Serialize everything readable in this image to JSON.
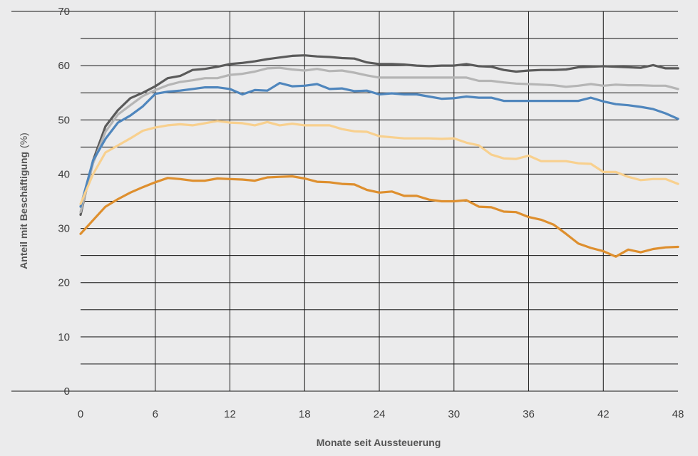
{
  "chart_data": {
    "type": "line",
    "title": "",
    "xlabel": "Monate seit Aussteuerung",
    "ylabel": "Anteil mit Beschäftigung",
    "ylabel_unit": "(%)",
    "xlim": [
      0,
      48
    ],
    "ylim": [
      0,
      70
    ],
    "x_ticks": [
      0,
      6,
      12,
      18,
      24,
      30,
      36,
      42,
      48
    ],
    "y_ticks": [
      0,
      10,
      20,
      30,
      40,
      50,
      60,
      70
    ],
    "grid": true,
    "legend": "none",
    "series": [
      {
        "color": "#5a5a5a",
        "points": [
          [
            0,
            32.5
          ],
          [
            1,
            42.5
          ],
          [
            2,
            48.8
          ],
          [
            3,
            51.8
          ],
          [
            4,
            54
          ],
          [
            5,
            55
          ],
          [
            6,
            56.2
          ],
          [
            7,
            57.7
          ],
          [
            8,
            58.1
          ],
          [
            9,
            59.2
          ],
          [
            10,
            59.4
          ],
          [
            11,
            59.8
          ],
          [
            12,
            60.3
          ],
          [
            13,
            60.5
          ],
          [
            14,
            60.8
          ],
          [
            15,
            61.2
          ],
          [
            16,
            61.5
          ],
          [
            17,
            61.8
          ],
          [
            18,
            61.9
          ],
          [
            19,
            61.7
          ],
          [
            20,
            61.6
          ],
          [
            21,
            61.4
          ],
          [
            22,
            61.3
          ],
          [
            23,
            60.6
          ],
          [
            24,
            60.3
          ],
          [
            25,
            60.3
          ],
          [
            26,
            60.2
          ],
          [
            27,
            60
          ],
          [
            28,
            59.9
          ],
          [
            29,
            60
          ],
          [
            30,
            60
          ],
          [
            31,
            60.3
          ],
          [
            32,
            59.9
          ],
          [
            33,
            59.8
          ],
          [
            34,
            59.2
          ],
          [
            35,
            58.9
          ],
          [
            36,
            59.1
          ],
          [
            37,
            59.2
          ],
          [
            38,
            59.2
          ],
          [
            39,
            59.3
          ],
          [
            40,
            59.7
          ],
          [
            41,
            59.8
          ],
          [
            42,
            59.9
          ],
          [
            43,
            59.8
          ],
          [
            44,
            59.7
          ],
          [
            45,
            59.6
          ],
          [
            46,
            60.1
          ],
          [
            47,
            59.5
          ],
          [
            48,
            59.5
          ]
        ]
      },
      {
        "color": "#b5b5b5",
        "points": [
          [
            0,
            33
          ],
          [
            1,
            42
          ],
          [
            2,
            47.8
          ],
          [
            3,
            51
          ],
          [
            4,
            52.7
          ],
          [
            5,
            54.4
          ],
          [
            6,
            55.5
          ],
          [
            7,
            56.4
          ],
          [
            8,
            57
          ],
          [
            9,
            57.3
          ],
          [
            10,
            57.7
          ],
          [
            11,
            57.7
          ],
          [
            12,
            58.3
          ],
          [
            13,
            58.5
          ],
          [
            14,
            58.9
          ],
          [
            15,
            59.5
          ],
          [
            16,
            59.6
          ],
          [
            17,
            59.3
          ],
          [
            18,
            59.1
          ],
          [
            19,
            59.4
          ],
          [
            20,
            59
          ],
          [
            21,
            59.1
          ],
          [
            22,
            58.7
          ],
          [
            23,
            58.2
          ],
          [
            24,
            57.8
          ],
          [
            25,
            57.8
          ],
          [
            26,
            57.8
          ],
          [
            27,
            57.8
          ],
          [
            28,
            57.8
          ],
          [
            29,
            57.8
          ],
          [
            30,
            57.8
          ],
          [
            31,
            57.8
          ],
          [
            32,
            57.2
          ],
          [
            33,
            57.2
          ],
          [
            34,
            56.9
          ],
          [
            35,
            56.7
          ],
          [
            36,
            56.6
          ],
          [
            37,
            56.5
          ],
          [
            38,
            56.4
          ],
          [
            39,
            56.1
          ],
          [
            40,
            56.3
          ],
          [
            41,
            56.6
          ],
          [
            42,
            56.3
          ],
          [
            43,
            56.5
          ],
          [
            44,
            56.4
          ],
          [
            45,
            56.4
          ],
          [
            46,
            56.3
          ],
          [
            47,
            56.3
          ],
          [
            48,
            55.7
          ]
        ]
      },
      {
        "color": "#4f86bd",
        "points": [
          [
            0,
            34
          ],
          [
            1,
            42.5
          ],
          [
            2,
            46.5
          ],
          [
            3,
            49.5
          ],
          [
            4,
            50.8
          ],
          [
            5,
            52.5
          ],
          [
            6,
            54.8
          ],
          [
            7,
            55.2
          ],
          [
            8,
            55.4
          ],
          [
            9,
            55.7
          ],
          [
            10,
            56
          ],
          [
            11,
            56
          ],
          [
            12,
            55.7
          ],
          [
            13,
            54.7
          ],
          [
            14,
            55.5
          ],
          [
            15,
            55.4
          ],
          [
            16,
            56.8
          ],
          [
            17,
            56.2
          ],
          [
            18,
            56.3
          ],
          [
            19,
            56.6
          ],
          [
            20,
            55.7
          ],
          [
            21,
            55.8
          ],
          [
            22,
            55.3
          ],
          [
            23,
            55.4
          ],
          [
            24,
            54.7
          ],
          [
            25,
            54.9
          ],
          [
            26,
            54.7
          ],
          [
            27,
            54.7
          ],
          [
            28,
            54.3
          ],
          [
            29,
            53.9
          ],
          [
            30,
            54
          ],
          [
            31,
            54.3
          ],
          [
            32,
            54.1
          ],
          [
            33,
            54.1
          ],
          [
            34,
            53.5
          ],
          [
            35,
            53.5
          ],
          [
            36,
            53.5
          ],
          [
            37,
            53.5
          ],
          [
            38,
            53.5
          ],
          [
            39,
            53.5
          ],
          [
            40,
            53.5
          ],
          [
            41,
            54.1
          ],
          [
            42,
            53.4
          ],
          [
            43,
            52.9
          ],
          [
            44,
            52.7
          ],
          [
            45,
            52.4
          ],
          [
            46,
            52
          ],
          [
            47,
            51.2
          ],
          [
            48,
            50.2
          ]
        ]
      },
      {
        "color": "#f8d08e",
        "points": [
          [
            0,
            34.5
          ],
          [
            1,
            40
          ],
          [
            2,
            44
          ],
          [
            3,
            45.3
          ],
          [
            4,
            46.6
          ],
          [
            5,
            48
          ],
          [
            6,
            48.6
          ],
          [
            7,
            49
          ],
          [
            8,
            49.2
          ],
          [
            9,
            49
          ],
          [
            10,
            49.4
          ],
          [
            11,
            49.8
          ],
          [
            12,
            49.5
          ],
          [
            13,
            49.4
          ],
          [
            14,
            49
          ],
          [
            15,
            49.6
          ],
          [
            16,
            49
          ],
          [
            17,
            49.3
          ],
          [
            18,
            49
          ],
          [
            19,
            49
          ],
          [
            20,
            49
          ],
          [
            21,
            48.3
          ],
          [
            22,
            47.9
          ],
          [
            23,
            47.8
          ],
          [
            24,
            47
          ],
          [
            25,
            46.8
          ],
          [
            26,
            46.6
          ],
          [
            27,
            46.6
          ],
          [
            28,
            46.6
          ],
          [
            29,
            46.5
          ],
          [
            30,
            46.6
          ],
          [
            31,
            45.8
          ],
          [
            32,
            45.3
          ],
          [
            33,
            43.6
          ],
          [
            34,
            42.9
          ],
          [
            35,
            42.8
          ],
          [
            36,
            43.4
          ],
          [
            37,
            42.4
          ],
          [
            38,
            42.4
          ],
          [
            39,
            42.4
          ],
          [
            40,
            42
          ],
          [
            41,
            41.9
          ],
          [
            42,
            40.4
          ],
          [
            43,
            40.4
          ],
          [
            44,
            39.5
          ],
          [
            45,
            38.9
          ],
          [
            46,
            39.1
          ],
          [
            47,
            39.1
          ],
          [
            48,
            38.2
          ]
        ]
      },
      {
        "color": "#de8f2e",
        "points": [
          [
            0,
            29
          ],
          [
            1,
            31.5
          ],
          [
            2,
            34
          ],
          [
            3,
            35.4
          ],
          [
            4,
            36.6
          ],
          [
            5,
            37.6
          ],
          [
            6,
            38.5
          ],
          [
            7,
            39.3
          ],
          [
            8,
            39.1
          ],
          [
            9,
            38.8
          ],
          [
            10,
            38.8
          ],
          [
            11,
            39.2
          ],
          [
            12,
            39.1
          ],
          [
            13,
            39
          ],
          [
            14,
            38.8
          ],
          [
            15,
            39.4
          ],
          [
            16,
            39.5
          ],
          [
            17,
            39.6
          ],
          [
            18,
            39.2
          ],
          [
            19,
            38.6
          ],
          [
            20,
            38.5
          ],
          [
            21,
            38.2
          ],
          [
            22,
            38.1
          ],
          [
            23,
            37.1
          ],
          [
            24,
            36.6
          ],
          [
            25,
            36.8
          ],
          [
            26,
            36
          ],
          [
            27,
            36
          ],
          [
            28,
            35.3
          ],
          [
            29,
            35
          ],
          [
            30,
            35
          ],
          [
            31,
            35.2
          ],
          [
            32,
            34
          ],
          [
            33,
            33.9
          ],
          [
            34,
            33.1
          ],
          [
            35,
            33
          ],
          [
            36,
            32.1
          ],
          [
            37,
            31.6
          ],
          [
            38,
            30.7
          ],
          [
            39,
            29
          ],
          [
            40,
            27.2
          ],
          [
            41,
            26.4
          ],
          [
            42,
            25.8
          ],
          [
            43,
            24.8
          ],
          [
            44,
            26.1
          ],
          [
            45,
            25.6
          ],
          [
            46,
            26.2
          ],
          [
            47,
            26.5
          ],
          [
            48,
            26.6
          ]
        ]
      }
    ]
  }
}
